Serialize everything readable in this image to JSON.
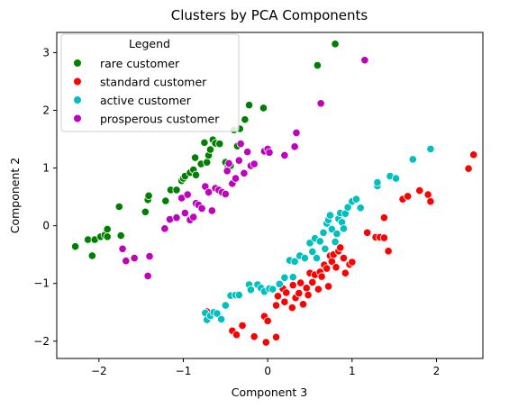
{
  "chart_data": {
    "type": "scatter",
    "title": "Clusters by PCA Components",
    "xlabel": "Component 3",
    "ylabel": "Component 2",
    "xlim": [
      -2.5,
      2.55
    ],
    "ylim": [
      -2.3,
      3.35
    ],
    "xticks": [
      -2,
      -1,
      0,
      1,
      2
    ],
    "yticks": [
      -2,
      -1,
      0,
      1,
      2,
      3
    ],
    "grid": false,
    "legend": {
      "title": "Legend",
      "position": "upper-left"
    },
    "series": [
      {
        "name": "rare customer",
        "color": "#008000",
        "points": [
          [
            -2.28,
            -0.36
          ],
          [
            -2.13,
            -0.24
          ],
          [
            -2.08,
            -0.52
          ],
          [
            -2.05,
            -0.24
          ],
          [
            -1.98,
            -0.19
          ],
          [
            -1.93,
            -0.16
          ],
          [
            -1.9,
            -0.06
          ],
          [
            -1.9,
            -0.19
          ],
          [
            -1.76,
            0.33
          ],
          [
            -1.74,
            -0.17
          ],
          [
            -1.45,
            0.24
          ],
          [
            -1.42,
            0.45
          ],
          [
            -1.41,
            0.52
          ],
          [
            -1.21,
            0.43
          ],
          [
            -1.15,
            0.62
          ],
          [
            -1.08,
            0.62
          ],
          [
            -1.02,
            0.78
          ],
          [
            -1.0,
            0.82
          ],
          [
            -0.98,
            0.86
          ],
          [
            -0.92,
            0.92
          ],
          [
            -0.88,
            0.97
          ],
          [
            -0.86,
            1.18
          ],
          [
            -0.85,
            0.88
          ],
          [
            -0.79,
            1.07
          ],
          [
            -0.75,
            1.44
          ],
          [
            -0.72,
            1.1
          ],
          [
            -0.7,
            1.22
          ],
          [
            -0.68,
            1.32
          ],
          [
            -0.65,
            1.49
          ],
          [
            -0.62,
            1.43
          ],
          [
            -0.57,
            1.42
          ],
          [
            -0.5,
            1.1
          ],
          [
            -0.47,
            1.03
          ],
          [
            -0.44,
            1.04
          ],
          [
            -0.4,
            1.66
          ],
          [
            -0.36,
            1.38
          ],
          [
            -0.33,
            1.68
          ],
          [
            -0.27,
            1.84
          ],
          [
            -0.22,
            2.09
          ],
          [
            -0.05,
            2.04
          ],
          [
            0.59,
            2.78
          ],
          [
            0.8,
            3.15
          ]
        ]
      },
      {
        "name": "standard customer",
        "color": "#ff0000",
        "points": [
          [
            -0.72,
            -1.49
          ],
          [
            -0.42,
            -1.82
          ],
          [
            -0.37,
            -1.89
          ],
          [
            -0.3,
            -1.73
          ],
          [
            -0.16,
            -1.92
          ],
          [
            -0.04,
            -1.57
          ],
          [
            -0.02,
            -2.02
          ],
          [
            0.0,
            -1.65
          ],
          [
            0.1,
            -1.93
          ],
          [
            0.1,
            -1.38
          ],
          [
            0.12,
            -1.22
          ],
          [
            0.18,
            -1.09
          ],
          [
            0.2,
            -1.32
          ],
          [
            0.22,
            -1.16
          ],
          [
            0.29,
            -1.42
          ],
          [
            0.3,
            -1.03
          ],
          [
            0.33,
            -1.25
          ],
          [
            0.37,
            -1.17
          ],
          [
            0.39,
            -0.99
          ],
          [
            0.42,
            -1.36
          ],
          [
            0.46,
            -1.08
          ],
          [
            0.48,
            -1.2
          ],
          [
            0.5,
            -0.82
          ],
          [
            0.53,
            -0.98
          ],
          [
            0.56,
            -0.85
          ],
          [
            0.6,
            -1.1
          ],
          [
            0.62,
            -0.8
          ],
          [
            0.64,
            -0.88
          ],
          [
            0.67,
            -0.68
          ],
          [
            0.7,
            -0.74
          ],
          [
            0.72,
            -1.05
          ],
          [
            0.74,
            -0.52
          ],
          [
            0.76,
            -0.62
          ],
          [
            0.78,
            -0.5
          ],
          [
            0.81,
            -0.72
          ],
          [
            0.84,
            -0.44
          ],
          [
            0.86,
            -0.38
          ],
          [
            0.9,
            -0.56
          ],
          [
            0.92,
            -0.82
          ],
          [
            0.97,
            -0.67
          ],
          [
            1.0,
            -0.63
          ],
          [
            1.18,
            -0.12
          ],
          [
            1.28,
            -0.2
          ],
          [
            1.33,
            -0.2
          ],
          [
            1.38,
            -0.21
          ],
          [
            1.38,
            0.14
          ],
          [
            1.43,
            -0.44
          ],
          [
            1.6,
            0.46
          ],
          [
            1.66,
            0.51
          ],
          [
            1.8,
            0.61
          ],
          [
            1.9,
            0.54
          ],
          [
            1.93,
            0.42
          ],
          [
            2.38,
            0.99
          ],
          [
            2.44,
            1.23
          ]
        ]
      },
      {
        "name": "active customer",
        "color": "#00bfbf",
        "points": [
          [
            -0.74,
            -1.51
          ],
          [
            -0.72,
            -1.63
          ],
          [
            -0.68,
            -1.56
          ],
          [
            -0.64,
            -1.5
          ],
          [
            -0.6,
            -1.52
          ],
          [
            -0.55,
            -1.62
          ],
          [
            -0.5,
            -1.38
          ],
          [
            -0.44,
            -1.21
          ],
          [
            -0.38,
            -1.2
          ],
          [
            -0.34,
            -1.2
          ],
          [
            -0.22,
            -1.02
          ],
          [
            -0.2,
            -1.11
          ],
          [
            -0.12,
            -1.02
          ],
          [
            -0.08,
            -1.08
          ],
          [
            -0.04,
            -1.14
          ],
          [
            0.02,
            -1.09
          ],
          [
            0.06,
            -1.1
          ],
          [
            0.14,
            -1.01
          ],
          [
            0.2,
            -0.9
          ],
          [
            0.26,
            -0.6
          ],
          [
            0.3,
            -0.89
          ],
          [
            0.32,
            -0.62
          ],
          [
            0.38,
            -0.52
          ],
          [
            0.44,
            -0.56
          ],
          [
            0.5,
            -0.3
          ],
          [
            0.53,
            -0.45
          ],
          [
            0.56,
            -0.22
          ],
          [
            0.58,
            -0.56
          ],
          [
            0.62,
            -0.27
          ],
          [
            0.66,
            -0.12
          ],
          [
            0.68,
            -0.4
          ],
          [
            0.7,
            0.04
          ],
          [
            0.72,
            0.1
          ],
          [
            0.74,
            0.18
          ],
          [
            0.76,
            -0.06
          ],
          [
            0.8,
            -0.28
          ],
          [
            0.82,
            -0.14
          ],
          [
            0.84,
            0.12
          ],
          [
            0.86,
            0.22
          ],
          [
            0.88,
            0.06
          ],
          [
            0.9,
            -0.05
          ],
          [
            0.92,
            0.21
          ],
          [
            0.95,
            0.32
          ],
          [
            1.0,
            0.42
          ],
          [
            1.05,
            0.46
          ],
          [
            1.1,
            0.31
          ],
          [
            1.3,
            0.69
          ],
          [
            1.3,
            0.75
          ],
          [
            1.45,
            0.86
          ],
          [
            1.52,
            0.82
          ],
          [
            1.72,
            1.15
          ],
          [
            1.93,
            1.33
          ]
        ]
      },
      {
        "name": "prosperous customer",
        "color": "#bf00bf",
        "points": [
          [
            -1.72,
            -0.4
          ],
          [
            -1.68,
            -0.61
          ],
          [
            -1.58,
            -0.56
          ],
          [
            -1.42,
            -0.87
          ],
          [
            -1.4,
            -0.53
          ],
          [
            -1.22,
            -0.05
          ],
          [
            -1.16,
            0.11
          ],
          [
            -1.08,
            0.14
          ],
          [
            -1.02,
            0.48
          ],
          [
            -0.98,
            0.22
          ],
          [
            -0.95,
            0.54
          ],
          [
            -0.92,
            0.1
          ],
          [
            -0.88,
            0.15
          ],
          [
            -0.85,
            0.39
          ],
          [
            -0.82,
            0.36
          ],
          [
            -0.78,
            0.3
          ],
          [
            -0.74,
            0.68
          ],
          [
            -0.7,
            0.58
          ],
          [
            -0.66,
            0.26
          ],
          [
            -0.62,
            0.65
          ],
          [
            -0.58,
            0.62
          ],
          [
            -0.54,
            0.58
          ],
          [
            -0.5,
            0.55
          ],
          [
            -0.48,
            0.95
          ],
          [
            -0.46,
            1.08
          ],
          [
            -0.42,
            0.73
          ],
          [
            -0.38,
            0.82
          ],
          [
            -0.34,
            1.13
          ],
          [
            -0.32,
            1.42
          ],
          [
            -0.28,
            0.91
          ],
          [
            -0.24,
            1.28
          ],
          [
            -0.2,
            1.04
          ],
          [
            -0.16,
            1.07
          ],
          [
            -0.04,
            1.29
          ],
          [
            0.0,
            1.33
          ],
          [
            0.02,
            1.27
          ],
          [
            0.2,
            1.22
          ],
          [
            0.32,
            1.37
          ],
          [
            0.34,
            1.61
          ],
          [
            0.63,
            2.12
          ],
          [
            1.15,
            2.87
          ]
        ]
      }
    ]
  }
}
